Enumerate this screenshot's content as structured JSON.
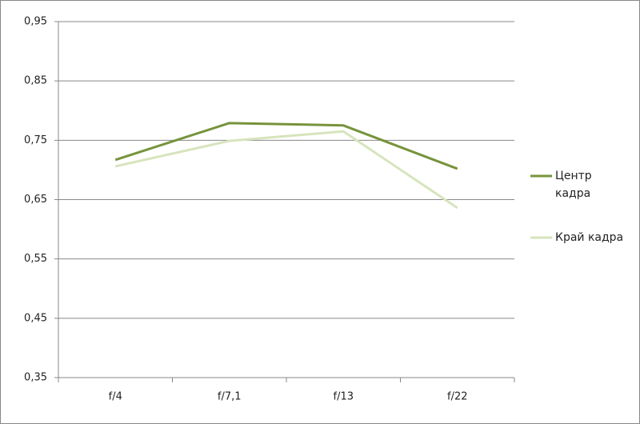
{
  "chart_data": {
    "type": "line",
    "categories": [
      "f/4",
      "f/7,1",
      "f/13",
      "f/22"
    ],
    "series": [
      {
        "name": "Центр кадра",
        "color": "#77933c",
        "values": [
          0.717,
          0.779,
          0.775,
          0.702
        ]
      },
      {
        "name": "Край кадра",
        "color": "#d7e4bd",
        "values": [
          0.706,
          0.749,
          0.765,
          0.636
        ]
      }
    ],
    "ylim": [
      0.35,
      0.95
    ],
    "yticks": [
      {
        "value": 0.35,
        "label": "0,35"
      },
      {
        "value": 0.45,
        "label": "0,45"
      },
      {
        "value": 0.55,
        "label": "0,55"
      },
      {
        "value": 0.65,
        "label": "0,65"
      },
      {
        "value": 0.75,
        "label": "0,75"
      },
      {
        "value": 0.85,
        "label": "0,85"
      },
      {
        "value": 0.95,
        "label": "0,95"
      }
    ],
    "grid": true,
    "legend": "right"
  }
}
